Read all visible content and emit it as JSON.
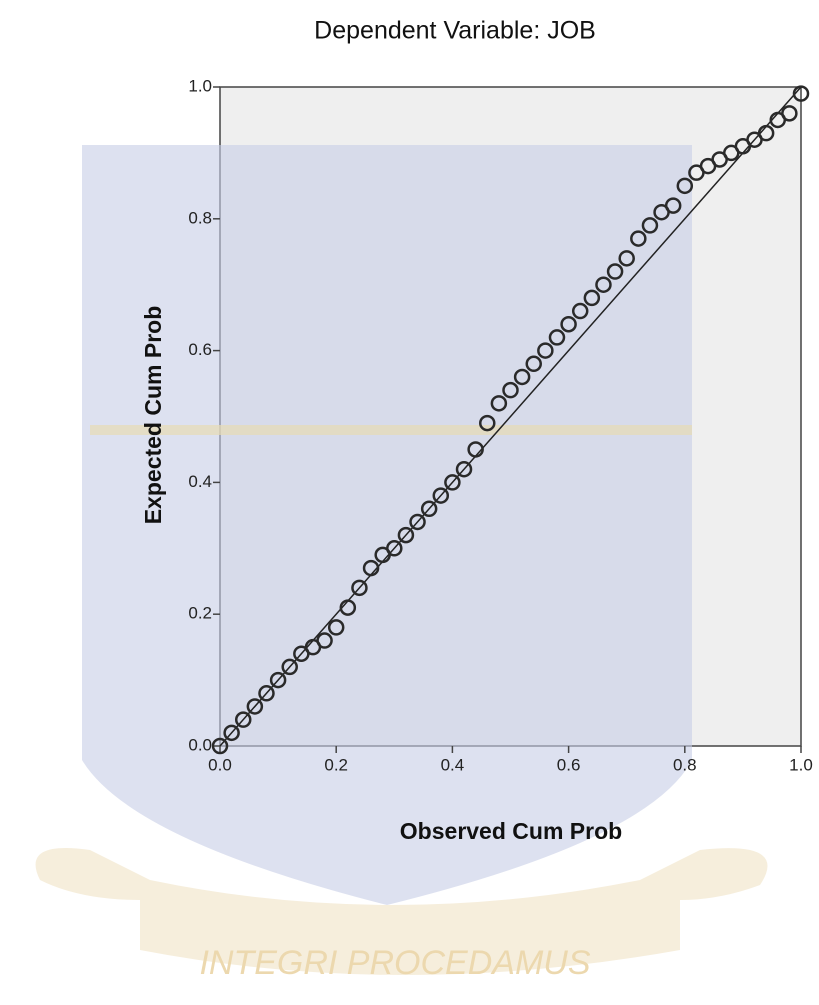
{
  "chart_data": {
    "type": "scatter",
    "title": "Dependent Variable: JOB",
    "x_label": "Observed Cum Prob",
    "y_label": "Expected Cum Prob",
    "x": [
      0.0,
      0.02,
      0.04,
      0.06,
      0.08,
      0.1,
      0.12,
      0.14,
      0.16,
      0.18,
      0.2,
      0.22,
      0.24,
      0.26,
      0.28,
      0.3,
      0.32,
      0.34,
      0.36,
      0.38,
      0.4,
      0.42,
      0.44,
      0.46,
      0.48,
      0.5,
      0.52,
      0.54,
      0.56,
      0.58,
      0.6,
      0.62,
      0.64,
      0.66,
      0.68,
      0.7,
      0.72,
      0.74,
      0.76,
      0.78,
      0.8,
      0.82,
      0.84,
      0.86,
      0.88,
      0.9,
      0.92,
      0.94,
      0.96,
      0.98,
      1.0
    ],
    "values": [
      0.0,
      0.02,
      0.04,
      0.06,
      0.08,
      0.1,
      0.12,
      0.14,
      0.15,
      0.16,
      0.18,
      0.21,
      0.24,
      0.27,
      0.29,
      0.3,
      0.32,
      0.34,
      0.36,
      0.38,
      0.4,
      0.42,
      0.45,
      0.49,
      0.52,
      0.54,
      0.56,
      0.58,
      0.6,
      0.62,
      0.64,
      0.66,
      0.68,
      0.7,
      0.72,
      0.74,
      0.77,
      0.79,
      0.81,
      0.82,
      0.85,
      0.87,
      0.88,
      0.89,
      0.9,
      0.91,
      0.92,
      0.93,
      0.95,
      0.96,
      0.99
    ],
    "color": "#2a2a2a",
    "reference_line": true,
    "xlim": [
      0,
      1
    ],
    "ylim": [
      0,
      1
    ],
    "xticks": [
      {
        "value": 0,
        "label": "0.0"
      },
      0.2,
      0.4,
      0.6,
      0.8,
      {
        "value": 1,
        "label": "1.0"
      }
    ],
    "yticks": [
      {
        "value": 0,
        "label": "0.0"
      },
      0.2,
      0.4,
      0.6,
      0.8,
      {
        "value": 1,
        "label": "1.0"
      }
    ],
    "watermark": "INTEGRI PROCEDAMUS"
  }
}
